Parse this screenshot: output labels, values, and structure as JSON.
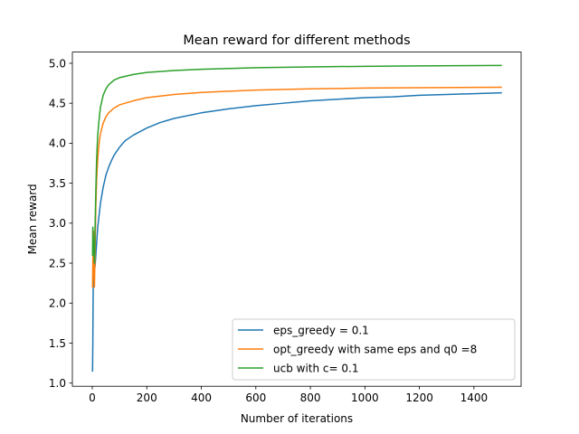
{
  "chart_data": {
    "type": "line",
    "title": "Mean reward for different methods",
    "xlabel": "Number of iterations",
    "ylabel": "Mean reward",
    "xlim": [
      -73,
      1573
    ],
    "ylim": [
      0.96,
      5.14
    ],
    "grid": false,
    "legend_position": "lower-right",
    "x_ticks": [
      0,
      200,
      400,
      600,
      800,
      1000,
      1200,
      1400
    ],
    "x_tick_labels": [
      "0",
      "200",
      "400",
      "600",
      "800",
      "1000",
      "1200",
      "1400"
    ],
    "y_ticks": [
      1.0,
      1.5,
      2.0,
      2.5,
      3.0,
      3.5,
      4.0,
      4.5,
      5.0
    ],
    "y_tick_labels": [
      "1.0",
      "1.5",
      "2.0",
      "2.5",
      "3.0",
      "3.5",
      "4.0",
      "4.5",
      "5.0"
    ],
    "series": [
      {
        "name": "eps_greedy = 0.1",
        "color": "#1f77b4",
        "points": [
          [
            1,
            1.15
          ],
          [
            2,
            1.5
          ],
          [
            3,
            2.0
          ],
          [
            4,
            2.4
          ],
          [
            5,
            2.6
          ],
          [
            7,
            2.5
          ],
          [
            10,
            2.45
          ],
          [
            15,
            2.7
          ],
          [
            20,
            2.95
          ],
          [
            30,
            3.25
          ],
          [
            40,
            3.45
          ],
          [
            50,
            3.6
          ],
          [
            60,
            3.7
          ],
          [
            70,
            3.78
          ],
          [
            80,
            3.85
          ],
          [
            100,
            3.95
          ],
          [
            120,
            4.03
          ],
          [
            150,
            4.1
          ],
          [
            200,
            4.19
          ],
          [
            250,
            4.26
          ],
          [
            300,
            4.31
          ],
          [
            400,
            4.38
          ],
          [
            500,
            4.43
          ],
          [
            600,
            4.47
          ],
          [
            700,
            4.5
          ],
          [
            800,
            4.53
          ],
          [
            900,
            4.55
          ],
          [
            1000,
            4.57
          ],
          [
            1100,
            4.58
          ],
          [
            1200,
            4.6
          ],
          [
            1300,
            4.61
          ],
          [
            1400,
            4.62
          ],
          [
            1500,
            4.63
          ]
        ]
      },
      {
        "name": "opt_greedy with same eps and q0 =8",
        "color": "#ff7f0e",
        "points": [
          [
            1,
            2.2
          ],
          [
            2,
            2.5
          ],
          [
            3,
            2.7
          ],
          [
            4,
            2.55
          ],
          [
            5,
            2.9
          ],
          [
            6,
            2.4
          ],
          [
            8,
            2.2
          ],
          [
            10,
            2.6
          ],
          [
            13,
            3.2
          ],
          [
            16,
            3.55
          ],
          [
            20,
            3.8
          ],
          [
            25,
            4.0
          ],
          [
            30,
            4.12
          ],
          [
            40,
            4.25
          ],
          [
            50,
            4.33
          ],
          [
            60,
            4.38
          ],
          [
            80,
            4.44
          ],
          [
            100,
            4.48
          ],
          [
            150,
            4.53
          ],
          [
            200,
            4.57
          ],
          [
            300,
            4.61
          ],
          [
            400,
            4.635
          ],
          [
            500,
            4.65
          ],
          [
            600,
            4.665
          ],
          [
            800,
            4.68
          ],
          [
            1000,
            4.69
          ],
          [
            1200,
            4.695
          ],
          [
            1500,
            4.7
          ]
        ]
      },
      {
        "name": "ucb with c= 0.1",
        "color": "#2ca02c",
        "points": [
          [
            1,
            2.6
          ],
          [
            2,
            2.95
          ],
          [
            3,
            2.85
          ],
          [
            5,
            2.7
          ],
          [
            8,
            2.5
          ],
          [
            10,
            2.9
          ],
          [
            13,
            3.4
          ],
          [
            16,
            3.8
          ],
          [
            20,
            4.1
          ],
          [
            25,
            4.3
          ],
          [
            30,
            4.45
          ],
          [
            40,
            4.6
          ],
          [
            50,
            4.68
          ],
          [
            60,
            4.73
          ],
          [
            80,
            4.79
          ],
          [
            100,
            4.82
          ],
          [
            150,
            4.86
          ],
          [
            200,
            4.885
          ],
          [
            300,
            4.91
          ],
          [
            400,
            4.925
          ],
          [
            500,
            4.935
          ],
          [
            600,
            4.945
          ],
          [
            800,
            4.955
          ],
          [
            1000,
            4.962
          ],
          [
            1200,
            4.967
          ],
          [
            1500,
            4.973
          ]
        ]
      }
    ]
  }
}
